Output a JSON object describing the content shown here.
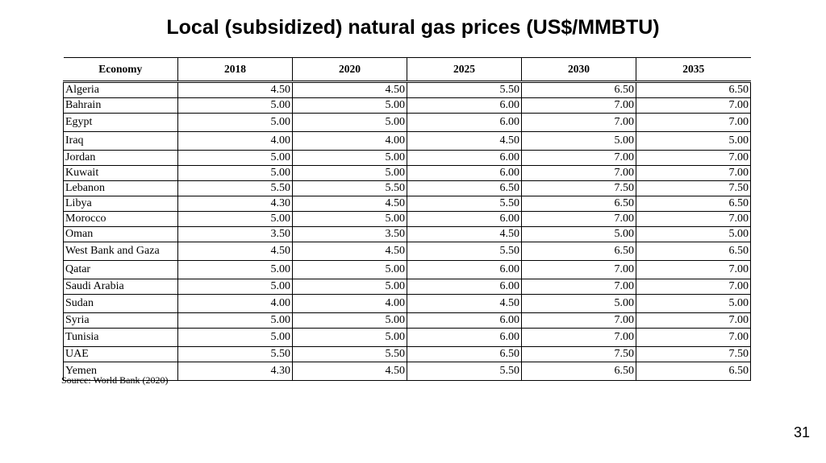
{
  "title": "Local (subsidized) natural gas prices (US$/MMBTU)",
  "table": {
    "headers": [
      "Economy",
      "2018",
      "2020",
      "2025",
      "2030",
      "2035"
    ],
    "rows": [
      [
        "Algeria",
        "4.50",
        "4.50",
        "5.50",
        "6.50",
        "6.50"
      ],
      [
        "Bahrain",
        "5.00",
        "5.00",
        "6.00",
        "7.00",
        "7.00"
      ],
      [
        "Egypt",
        "5.00",
        "5.00",
        "6.00",
        "7.00",
        "7.00"
      ],
      [
        "Iraq",
        "4.00",
        "4.00",
        "4.50",
        "5.00",
        "5.00"
      ],
      [
        "Jordan",
        "5.00",
        "5.00",
        "6.00",
        "7.00",
        "7.00"
      ],
      [
        "Kuwait",
        "5.00",
        "5.00",
        "6.00",
        "7.00",
        "7.00"
      ],
      [
        "Lebanon",
        "5.50",
        "5.50",
        "6.50",
        "7.50",
        "7.50"
      ],
      [
        "Libya",
        "4.30",
        "4.50",
        "5.50",
        "6.50",
        "6.50"
      ],
      [
        "Morocco",
        "5.00",
        "5.00",
        "6.00",
        "7.00",
        "7.00"
      ],
      [
        "Oman",
        "3.50",
        "3.50",
        "4.50",
        "5.00",
        "5.00"
      ],
      [
        "West Bank and Gaza",
        "4.50",
        "4.50",
        "5.50",
        "6.50",
        "6.50"
      ],
      [
        "Qatar",
        "5.00",
        "5.00",
        "6.00",
        "7.00",
        "7.00"
      ],
      [
        "Saudi Arabia",
        "5.00",
        "5.00",
        "6.00",
        "7.00",
        "7.00"
      ],
      [
        "Sudan",
        "4.00",
        "4.00",
        "4.50",
        "5.00",
        "5.00"
      ],
      [
        "Syria",
        "5.00",
        "5.00",
        "6.00",
        "7.00",
        "7.00"
      ],
      [
        "Tunisia",
        "5.00",
        "5.00",
        "6.00",
        "7.00",
        "7.00"
      ],
      [
        "UAE",
        "5.50",
        "5.50",
        "6.50",
        "7.50",
        "7.50"
      ],
      [
        "Yemen",
        "4.30",
        "4.50",
        "5.50",
        "6.50",
        "6.50"
      ]
    ]
  },
  "source": "Source: World Bank (2020)",
  "page_number": "31"
}
